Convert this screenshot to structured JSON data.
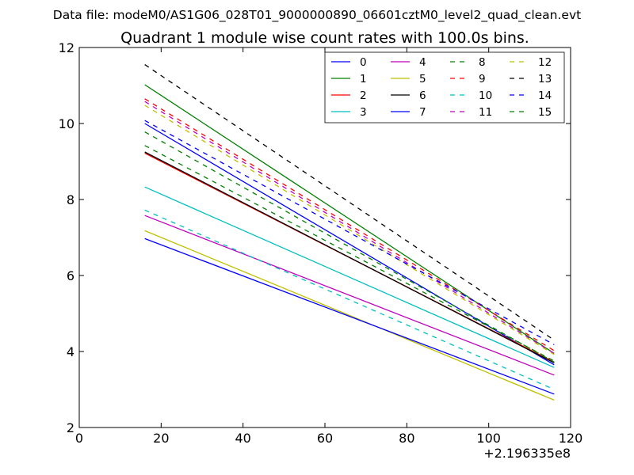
{
  "figure": {
    "suptitle": "Data file: modeM0/AS1G06_028T01_9000000890_06601cztM0_level2_quad_clean.evt"
  },
  "chart_data": {
    "type": "line",
    "title": "Quadrant 1 module wise count rates with 100.0s bins.",
    "xlabel": "",
    "ylabel": "",
    "x_offset_label": "+2.196335e8",
    "xlim": [
      0,
      120
    ],
    "ylim": [
      2,
      12
    ],
    "xticks": [
      0,
      20,
      40,
      60,
      80,
      100,
      120
    ],
    "yticks": [
      2,
      4,
      6,
      8,
      10,
      12
    ],
    "xtick_labels": [
      "0",
      "20",
      "40",
      "60",
      "80",
      "100",
      "120"
    ],
    "ytick_labels": [
      "2",
      "4",
      "6",
      "8",
      "10",
      "12"
    ],
    "grid": false,
    "legend": {
      "placement": "top-right",
      "columns": 4
    },
    "x": [
      16,
      116
    ],
    "series": [
      {
        "name": "0",
        "color": "#0000ff",
        "dash": "solid",
        "values": [
          10.0,
          3.65
        ]
      },
      {
        "name": "1",
        "color": "#008000",
        "dash": "solid",
        "values": [
          11.02,
          3.95
        ]
      },
      {
        "name": "2",
        "color": "#ff0000",
        "dash": "solid",
        "values": [
          9.22,
          3.72
        ]
      },
      {
        "name": "3",
        "color": "#00bfbf",
        "dash": "solid",
        "values": [
          8.33,
          3.58
        ]
      },
      {
        "name": "4",
        "color": "#bf00bf",
        "dash": "solid",
        "values": [
          7.58,
          3.38
        ]
      },
      {
        "name": "5",
        "color": "#bfbf00",
        "dash": "solid",
        "values": [
          7.18,
          2.72
        ]
      },
      {
        "name": "6",
        "color": "#000000",
        "dash": "solid",
        "values": [
          9.25,
          3.7
        ]
      },
      {
        "name": "7",
        "color": "#0000ff",
        "dash": "solid",
        "values": [
          6.97,
          2.88
        ]
      },
      {
        "name": "8",
        "color": "#008000",
        "dash": "dashed",
        "values": [
          9.78,
          3.72
        ]
      },
      {
        "name": "9",
        "color": "#ff0000",
        "dash": "dashed",
        "values": [
          10.65,
          4.02
        ]
      },
      {
        "name": "10",
        "color": "#00bfbf",
        "dash": "dashed",
        "values": [
          7.72,
          3.0
        ]
      },
      {
        "name": "11",
        "color": "#bf00bf",
        "dash": "dashed",
        "values": [
          10.58,
          3.95
        ]
      },
      {
        "name": "12",
        "color": "#bfbf00",
        "dash": "dashed",
        "values": [
          10.48,
          3.92
        ]
      },
      {
        "name": "13",
        "color": "#000000",
        "dash": "dashed",
        "values": [
          11.55,
          4.3
        ]
      },
      {
        "name": "14",
        "color": "#0000ff",
        "dash": "dashed",
        "values": [
          10.08,
          4.18
        ]
      },
      {
        "name": "15",
        "color": "#008000",
        "dash": "dashed",
        "values": [
          9.42,
          3.75
        ]
      }
    ]
  }
}
